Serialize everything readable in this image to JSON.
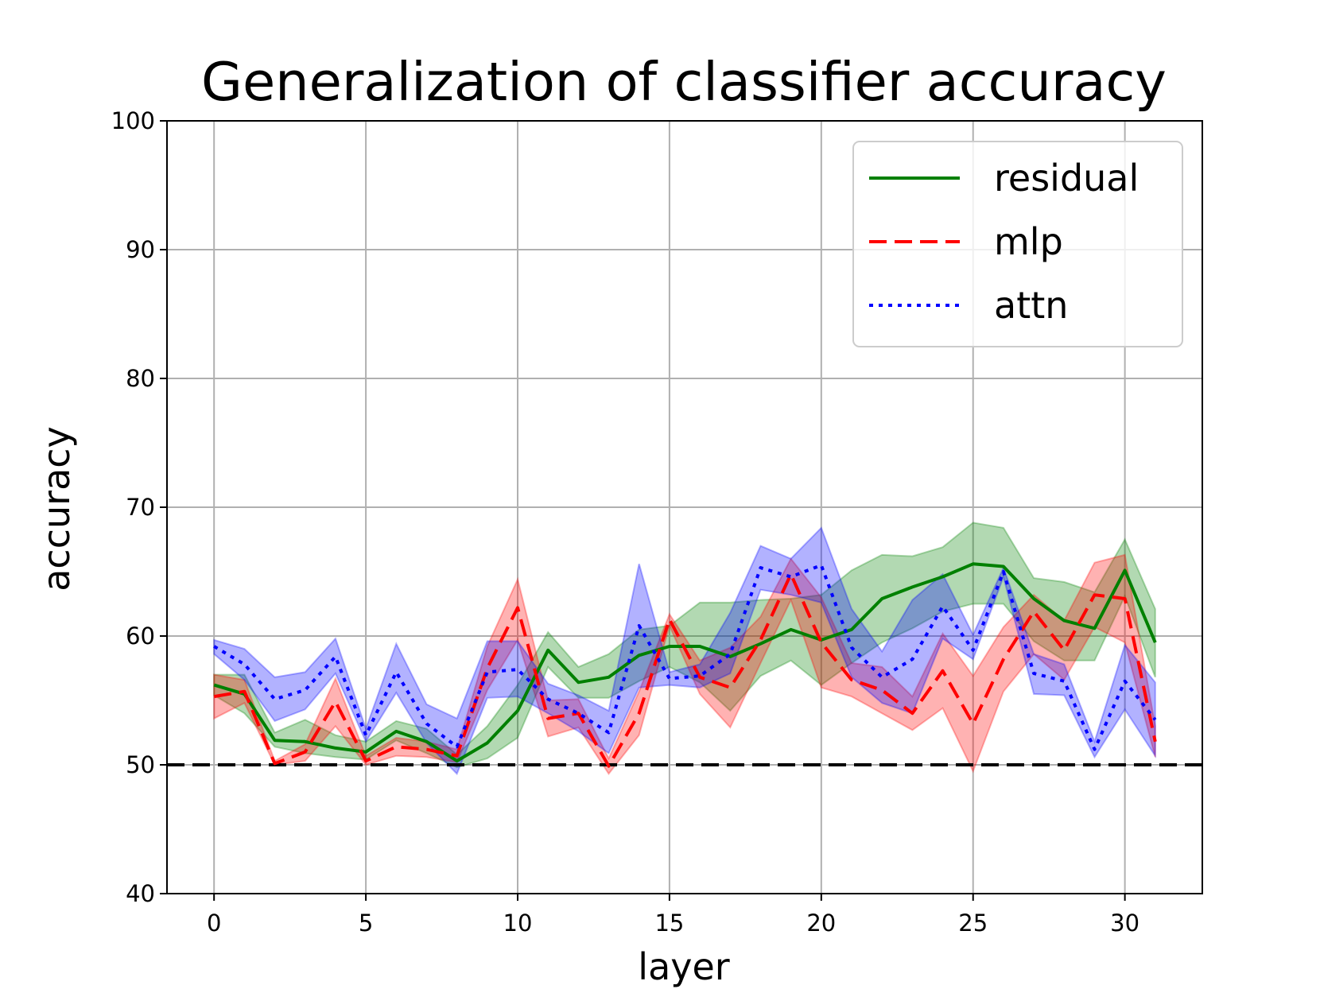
{
  "chart_data": {
    "type": "line",
    "title": "Generalization of classifier accuracy",
    "xlabel": "layer",
    "ylabel": "accuracy",
    "xlim": [
      -1.55,
      32.55
    ],
    "ylim": [
      40,
      100
    ],
    "xticks": [
      0,
      5,
      10,
      15,
      20,
      25,
      30
    ],
    "yticks": [
      40,
      50,
      60,
      70,
      80,
      90,
      100
    ],
    "grid": true,
    "legend_position": "top-right",
    "reference_line": {
      "y": 50,
      "color": "#000000",
      "style": "dashed"
    },
    "x": [
      0,
      1,
      2,
      3,
      4,
      5,
      6,
      7,
      8,
      9,
      10,
      11,
      12,
      13,
      14,
      15,
      16,
      17,
      18,
      19,
      20,
      21,
      22,
      23,
      24,
      25,
      26,
      27,
      28,
      29,
      30,
      31
    ],
    "series": [
      {
        "name": "residual",
        "color": "#008000",
        "style": "solid",
        "values": [
          56.2,
          55.5,
          51.9,
          51.8,
          51.3,
          51.0,
          52.6,
          51.8,
          50.3,
          51.7,
          54.2,
          58.9,
          56.4,
          56.8,
          58.5,
          59.2,
          59.2,
          58.4,
          59.4,
          60.5,
          59.7,
          60.5,
          62.9,
          63.8,
          64.6,
          65.6,
          65.4,
          62.9,
          61.2,
          60.6,
          65.1,
          59.5
        ],
        "lower": [
          55.4,
          54.0,
          51.4,
          50.9,
          50.6,
          50.4,
          51.9,
          50.9,
          49.8,
          50.5,
          52.1,
          57.6,
          55.2,
          55.2,
          56.5,
          57.6,
          56.4,
          54.2,
          56.9,
          58.1,
          56.2,
          57.9,
          59.5,
          60.6,
          61.9,
          62.5,
          62.5,
          59.6,
          58.1,
          58.1,
          63.1,
          56.8
        ],
        "upper": [
          57.0,
          57.0,
          52.5,
          53.5,
          52.3,
          51.8,
          53.4,
          52.8,
          50.8,
          53.0,
          56.2,
          60.3,
          57.6,
          58.6,
          60.5,
          60.8,
          62.6,
          62.6,
          62.8,
          62.9,
          63.2,
          65.1,
          66.3,
          66.2,
          66.9,
          68.8,
          68.4,
          64.5,
          64.2,
          63.4,
          67.5,
          62.1
        ]
      },
      {
        "name": "mlp",
        "color": "#ff0000",
        "style": "dashed",
        "values": [
          55.3,
          55.7,
          50.1,
          51.0,
          54.9,
          50.3,
          51.4,
          51.2,
          50.7,
          57.5,
          62.2,
          53.6,
          54.0,
          49.9,
          54.0,
          61.3,
          56.8,
          56.0,
          59.7,
          64.8,
          59.5,
          56.6,
          55.8,
          54.0,
          57.3,
          53.2,
          58.2,
          61.9,
          58.9,
          63.2,
          62.9,
          51.8
        ],
        "lower": [
          53.6,
          54.8,
          50.0,
          50.3,
          53.0,
          50.0,
          50.7,
          50.6,
          50.2,
          55.8,
          59.7,
          52.2,
          52.9,
          49.3,
          52.3,
          60.8,
          55.5,
          52.9,
          57.9,
          62.8,
          56.0,
          55.3,
          54.0,
          52.7,
          54.4,
          49.5,
          55.7,
          58.6,
          56.6,
          60.7,
          59.5,
          50.6
        ],
        "upper": [
          57.0,
          56.6,
          50.3,
          51.6,
          56.7,
          50.7,
          52.1,
          51.8,
          51.2,
          59.2,
          64.4,
          55.0,
          55.1,
          50.5,
          55.7,
          61.7,
          58.1,
          59.1,
          61.5,
          66.0,
          63.0,
          57.9,
          57.6,
          55.3,
          60.2,
          56.9,
          60.7,
          63.2,
          61.2,
          65.7,
          66.3,
          53.0
        ]
      },
      {
        "name": "attn",
        "color": "#0000ff",
        "style": "dotted",
        "values": [
          59.2,
          57.8,
          55.1,
          55.8,
          58.4,
          52.3,
          57.2,
          53.2,
          51.4,
          57.2,
          57.4,
          55.1,
          54.0,
          52.5,
          60.8,
          56.7,
          56.9,
          58.6,
          65.3,
          64.6,
          65.5,
          59.1,
          56.8,
          58.2,
          62.3,
          58.9,
          65.0,
          57.1,
          56.5,
          51.2,
          56.5,
          53.5
        ],
        "lower": [
          58.6,
          56.6,
          53.4,
          54.3,
          57.1,
          51.8,
          55.6,
          51.7,
          49.3,
          55.2,
          55.3,
          54.0,
          52.6,
          50.9,
          56.0,
          56.2,
          56.0,
          57.1,
          63.6,
          63.2,
          62.6,
          56.8,
          54.8,
          54.0,
          59.8,
          58.2,
          64.6,
          55.5,
          55.4,
          50.6,
          54.3,
          50.7
        ],
        "upper": [
          59.7,
          59.0,
          56.8,
          57.2,
          59.8,
          52.8,
          59.4,
          54.7,
          53.6,
          59.6,
          59.6,
          56.3,
          55.4,
          54.2,
          65.6,
          57.2,
          57.8,
          61.8,
          67.0,
          66.0,
          68.4,
          62.1,
          58.8,
          62.8,
          64.8,
          60.1,
          65.3,
          58.6,
          57.8,
          51.8,
          59.3,
          56.4
        ]
      }
    ]
  }
}
